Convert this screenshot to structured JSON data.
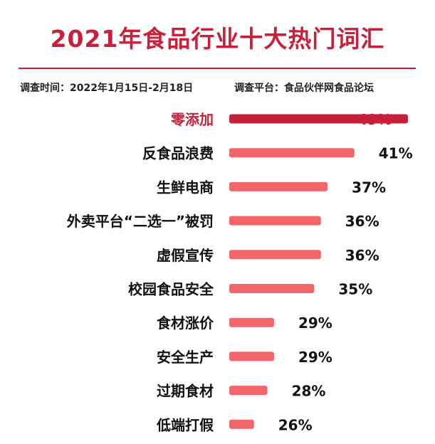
{
  "title": "2021年食品行业十大热门词汇",
  "meta": {
    "time": "调查时间：2022年1月15日-2月18日",
    "platform": "调查平台：食品伙伴网食品论坛"
  },
  "colors": {
    "accent": "#c8203a",
    "bar": "#f26569"
  },
  "chart_data": {
    "type": "bar",
    "orientation": "horizontal",
    "title": "2021年食品行业十大热门词汇",
    "categories": [
      "零添加",
      "反食品浪费",
      "生鲜电商",
      "外卖平台“二选一”被罚",
      "虚假宣传",
      "校园食品安全",
      "食材涨价",
      "安全生产",
      "过期食材",
      "低端打假"
    ],
    "values": [
      49,
      41,
      37,
      36,
      36,
      35,
      29,
      29,
      28,
      26
    ],
    "labels": [
      "49%",
      "41%",
      "37%",
      "36%",
      "36%",
      "35%",
      "29%",
      "29%",
      "28%",
      "26%"
    ],
    "unit": "%",
    "highlight_index": 0,
    "legend": "none",
    "grid": false
  }
}
